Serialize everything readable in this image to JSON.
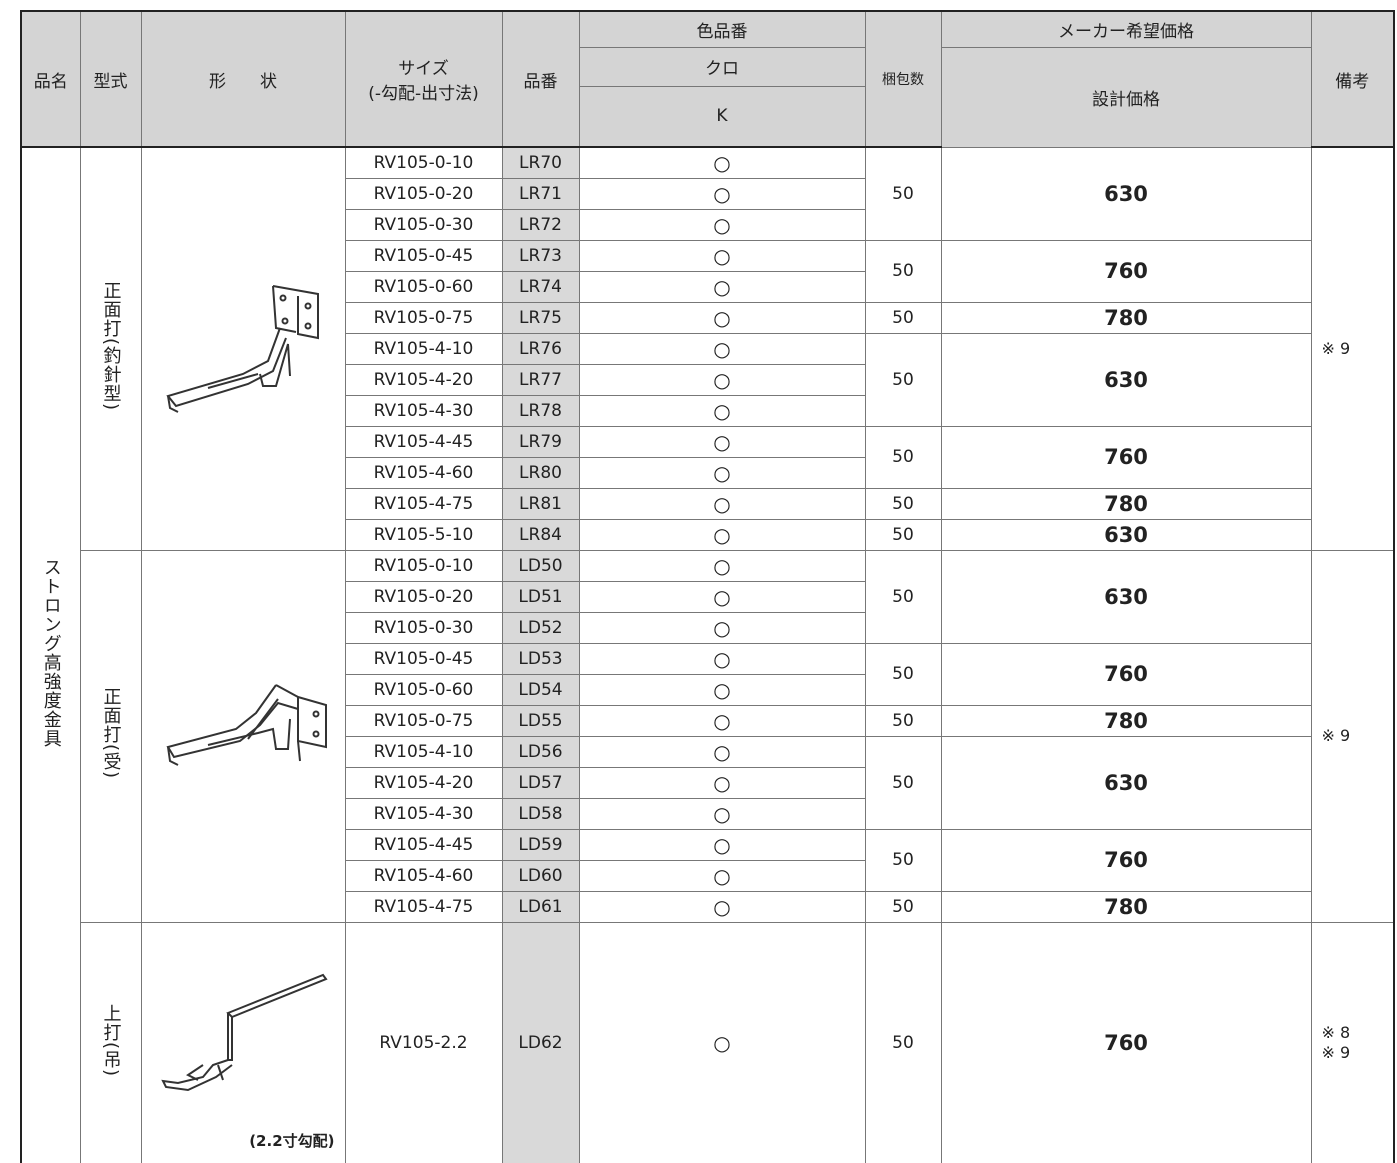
{
  "header": {
    "name": "品名",
    "type": "型式",
    "shape": "形　　状",
    "size": "サイズ",
    "size_sub": "(-勾配-出寸法)",
    "code": "品番",
    "color_code": "色品番",
    "color_name": "クロ",
    "color_letter": "K",
    "qty": "梱包数",
    "price_title": "メーカー希望価格",
    "price": "設計価格",
    "remarks": "備考"
  },
  "product_name": "ストロング高強度金具",
  "groups": [
    {
      "type": "正面打(釣針型)",
      "remarks": [
        "※ 9"
      ],
      "blocks": [
        {
          "qty": 50,
          "price": 630,
          "items": [
            {
              "size": "RV105-0-10",
              "code": "LR70",
              "k": "○"
            },
            {
              "size": "RV105-0-20",
              "code": "LR71",
              "k": "○"
            },
            {
              "size": "RV105-0-30",
              "code": "LR72",
              "k": "○"
            }
          ]
        },
        {
          "qty": 50,
          "price": 760,
          "items": [
            {
              "size": "RV105-0-45",
              "code": "LR73",
              "k": "○"
            },
            {
              "size": "RV105-0-60",
              "code": "LR74",
              "k": "○"
            }
          ]
        },
        {
          "qty": 50,
          "price": 780,
          "items": [
            {
              "size": "RV105-0-75",
              "code": "LR75",
              "k": "○"
            }
          ]
        },
        {
          "qty": 50,
          "price": 630,
          "items": [
            {
              "size": "RV105-4-10",
              "code": "LR76",
              "k": "○"
            },
            {
              "size": "RV105-4-20",
              "code": "LR77",
              "k": "○"
            },
            {
              "size": "RV105-4-30",
              "code": "LR78",
              "k": "○"
            }
          ]
        },
        {
          "qty": 50,
          "price": 760,
          "items": [
            {
              "size": "RV105-4-45",
              "code": "LR79",
              "k": "○"
            },
            {
              "size": "RV105-4-60",
              "code": "LR80",
              "k": "○"
            }
          ]
        },
        {
          "qty": 50,
          "price": 780,
          "items": [
            {
              "size": "RV105-4-75",
              "code": "LR81",
              "k": "○"
            }
          ]
        },
        {
          "qty": 50,
          "price": 630,
          "items": [
            {
              "size": "RV105-5-10",
              "code": "LR84",
              "k": "○"
            }
          ]
        }
      ]
    },
    {
      "type": "正面打(受)",
      "remarks": [
        "※ 9"
      ],
      "blocks": [
        {
          "qty": 50,
          "price": 630,
          "items": [
            {
              "size": "RV105-0-10",
              "code": "LD50",
              "k": "○"
            },
            {
              "size": "RV105-0-20",
              "code": "LD51",
              "k": "○"
            },
            {
              "size": "RV105-0-30",
              "code": "LD52",
              "k": "○"
            }
          ]
        },
        {
          "qty": 50,
          "price": 760,
          "items": [
            {
              "size": "RV105-0-45",
              "code": "LD53",
              "k": "○"
            },
            {
              "size": "RV105-0-60",
              "code": "LD54",
              "k": "○"
            }
          ]
        },
        {
          "qty": 50,
          "price": 780,
          "items": [
            {
              "size": "RV105-0-75",
              "code": "LD55",
              "k": "○"
            }
          ]
        },
        {
          "qty": 50,
          "price": 630,
          "items": [
            {
              "size": "RV105-4-10",
              "code": "LD56",
              "k": "○"
            },
            {
              "size": "RV105-4-20",
              "code": "LD57",
              "k": "○"
            },
            {
              "size": "RV105-4-30",
              "code": "LD58",
              "k": "○"
            }
          ]
        },
        {
          "qty": 50,
          "price": 760,
          "items": [
            {
              "size": "RV105-4-45",
              "code": "LD59",
              "k": "○"
            },
            {
              "size": "RV105-4-60",
              "code": "LD60",
              "k": "○"
            }
          ]
        },
        {
          "qty": 50,
          "price": 780,
          "items": [
            {
              "size": "RV105-4-75",
              "code": "LD61",
              "k": "○"
            }
          ]
        }
      ]
    },
    {
      "type": "上打(吊)",
      "caption": "(2.2寸勾配)",
      "remarks": [
        "※ 8",
        "※ 9"
      ],
      "blocks": [
        {
          "qty": 50,
          "price": 760,
          "items": [
            {
              "size": "RV105-2.2",
              "code": "LD62",
              "k": "○"
            }
          ]
        }
      ]
    }
  ]
}
